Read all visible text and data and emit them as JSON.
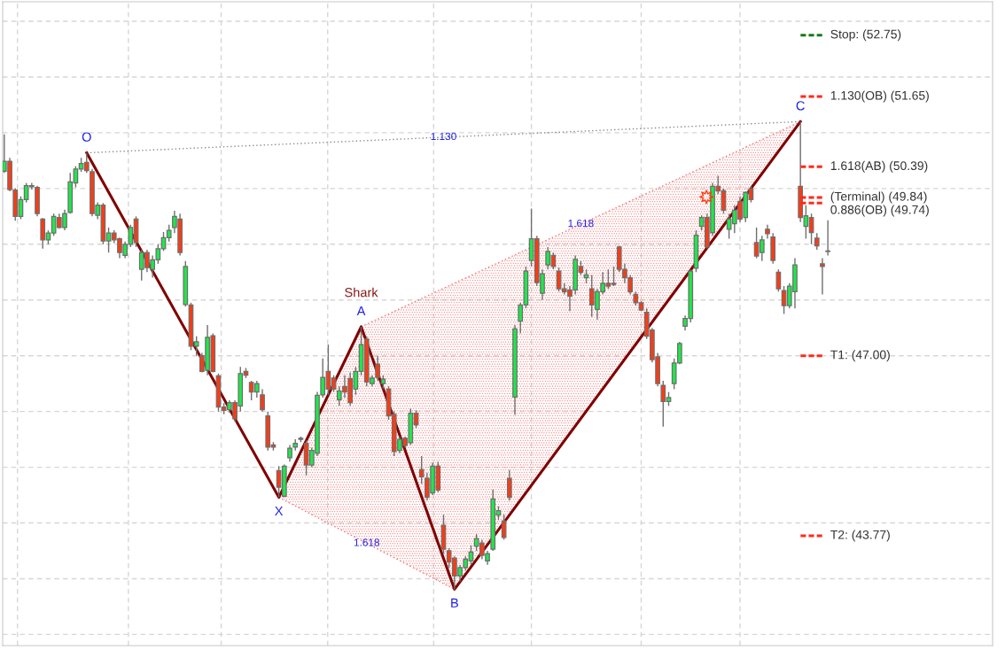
{
  "chart_data": {
    "type": "candlestick",
    "categories": [
      null,
      null,
      null,
      null,
      null,
      null,
      null,
      null,
      null,
      null,
      null,
      null,
      null,
      null,
      null,
      null,
      null,
      null,
      null,
      null,
      null,
      null,
      null,
      null,
      null,
      null,
      null,
      null,
      null,
      null,
      null,
      null,
      null,
      null,
      null,
      null,
      null,
      null,
      null,
      null,
      null,
      null,
      null,
      null,
      null,
      null,
      null,
      null,
      null,
      null,
      null,
      null,
      null,
      null,
      null,
      null,
      null,
      null,
      null,
      null,
      null,
      null,
      null,
      null,
      null,
      null,
      null,
      null,
      null,
      null,
      null,
      null,
      null,
      null,
      null,
      null,
      null,
      null,
      null,
      null,
      null,
      null,
      null,
      null,
      null,
      null,
      null,
      null,
      null,
      null,
      null,
      null,
      null,
      null,
      null,
      null,
      null,
      null,
      null,
      null,
      null,
      null,
      null,
      null,
      null,
      null,
      null,
      null,
      null,
      null,
      null,
      null,
      null,
      null,
      null,
      null,
      null,
      null,
      null,
      null,
      null,
      null,
      null,
      null,
      null,
      null,
      null,
      null,
      null,
      null,
      null,
      null,
      null,
      null,
      null,
      null,
      null,
      null,
      null,
      null,
      null,
      null,
      null,
      null,
      null,
      null,
      null,
      null,
      null,
      null,
      null
    ],
    "ohlc": [
      [
        50.31,
        50.97,
        50.28,
        50.49
      ],
      [
        50.49,
        50.55,
        49.95,
        49.98
      ],
      [
        49.97,
        50.0,
        49.42,
        49.5
      ],
      [
        49.5,
        49.86,
        49.45,
        49.8
      ],
      [
        49.8,
        50.1,
        49.75,
        50.05
      ],
      [
        50.05,
        50.1,
        49.98,
        50.03
      ],
      [
        50.02,
        50.05,
        49.5,
        49.55
      ],
      [
        49.45,
        49.47,
        48.92,
        49.08
      ],
      [
        49.08,
        49.25,
        49.0,
        49.2
      ],
      [
        49.2,
        49.55,
        49.15,
        49.5
      ],
      [
        49.48,
        49.55,
        49.28,
        49.3
      ],
      [
        49.3,
        49.62,
        49.25,
        49.55
      ],
      [
        49.57,
        50.28,
        49.55,
        50.12
      ],
      [
        50.1,
        50.4,
        50.02,
        50.35
      ],
      [
        50.35,
        50.55,
        50.3,
        50.45
      ],
      [
        50.47,
        50.64,
        50.28,
        50.32
      ],
      [
        50.3,
        50.35,
        49.5,
        49.55
      ],
      [
        49.52,
        49.75,
        49.45,
        49.7
      ],
      [
        49.7,
        49.74,
        49.0,
        49.06
      ],
      [
        49.06,
        49.3,
        48.85,
        49.2
      ],
      [
        49.2,
        49.25,
        49.02,
        49.08
      ],
      [
        49.1,
        49.12,
        48.75,
        48.85
      ],
      [
        48.8,
        49.05,
        48.75,
        49.0
      ],
      [
        49.0,
        49.35,
        48.95,
        49.3
      ],
      [
        49.45,
        49.5,
        48.95,
        49.03
      ],
      [
        48.55,
        48.9,
        48.35,
        48.85
      ],
      [
        48.85,
        48.9,
        48.5,
        48.58
      ],
      [
        48.55,
        48.8,
        48.4,
        48.72
      ],
      [
        48.72,
        49.0,
        48.65,
        48.92
      ],
      [
        48.92,
        49.22,
        48.88,
        49.12
      ],
      [
        49.12,
        49.35,
        49.05,
        49.25
      ],
      [
        49.3,
        49.6,
        49.2,
        49.5
      ],
      [
        49.45,
        49.55,
        48.8,
        48.85
      ],
      [
        47.92,
        48.7,
        47.88,
        48.6
      ],
      [
        47.91,
        47.95,
        47.1,
        47.17
      ],
      [
        47.17,
        47.35,
        47.0,
        47.25
      ],
      [
        47.0,
        47.05,
        46.7,
        46.72
      ],
      [
        46.74,
        47.55,
        46.65,
        47.33
      ],
      [
        47.36,
        47.4,
        46.7,
        46.72
      ],
      [
        46.64,
        46.68,
        46.0,
        46.08
      ],
      [
        46.08,
        46.15,
        45.95,
        46.02
      ],
      [
        46.03,
        46.2,
        45.98,
        46.16
      ],
      [
        46.16,
        46.2,
        45.82,
        45.87
      ],
      [
        46.1,
        46.8,
        46.0,
        46.68
      ],
      [
        46.72,
        46.78,
        46.6,
        46.65
      ],
      [
        46.52,
        46.55,
        46.2,
        46.35
      ],
      [
        46.35,
        46.55,
        46.25,
        46.5
      ],
      [
        46.3,
        46.4,
        46.0,
        46.03
      ],
      [
        45.92,
        46.0,
        45.3,
        45.36
      ],
      [
        45.4,
        45.45,
        45.3,
        45.36
      ],
      [
        44.94,
        45.02,
        44.46,
        44.64
      ],
      [
        44.48,
        45.05,
        44.46,
        45.02
      ],
      [
        45.17,
        45.4,
        45.1,
        45.34
      ],
      [
        45.36,
        45.5,
        45.3,
        45.43
      ],
      [
        45.52,
        45.55,
        45.45,
        45.5
      ],
      [
        45.43,
        45.48,
        44.85,
        45.04
      ],
      [
        45.04,
        45.35,
        45.0,
        45.3
      ],
      [
        45.25,
        46.35,
        45.2,
        46.29
      ],
      [
        46.3,
        46.95,
        46.25,
        46.61
      ],
      [
        46.72,
        47.2,
        46.3,
        46.4
      ],
      [
        46.6,
        46.65,
        46.35,
        46.4
      ],
      [
        46.21,
        46.45,
        46.1,
        46.37
      ],
      [
        46.45,
        46.65,
        46.25,
        46.35
      ],
      [
        46.59,
        46.7,
        46.1,
        46.16
      ],
      [
        46.4,
        46.8,
        46.3,
        46.72
      ],
      [
        46.72,
        47.52,
        46.65,
        47.2
      ],
      [
        47.3,
        47.35,
        46.45,
        46.53
      ],
      [
        46.5,
        46.65,
        46.45,
        46.6
      ],
      [
        46.85,
        47.0,
        46.55,
        46.61
      ],
      [
        46.5,
        46.65,
        46.4,
        46.58
      ],
      [
        46.4,
        46.45,
        45.85,
        45.92
      ],
      [
        45.95,
        46.0,
        45.2,
        45.28
      ],
      [
        45.3,
        45.55,
        45.25,
        45.5
      ],
      [
        45.52,
        45.55,
        45.35,
        45.39
      ],
      [
        45.44,
        46.05,
        45.4,
        45.97
      ],
      [
        45.97,
        46.02,
        45.7,
        45.76
      ],
      [
        44.96,
        45.2,
        44.7,
        44.83
      ],
      [
        44.8,
        44.9,
        44.4,
        44.46
      ],
      [
        44.54,
        45.08,
        44.5,
        45.02
      ],
      [
        45.02,
        45.1,
        44.55,
        44.59
      ],
      [
        43.96,
        44.15,
        43.45,
        43.53
      ],
      [
        43.5,
        43.55,
        43.2,
        43.3
      ],
      [
        43.37,
        43.4,
        42.81,
        43.05
      ],
      [
        43.05,
        43.25,
        42.95,
        43.2
      ],
      [
        43.2,
        43.4,
        43.15,
        43.35
      ],
      [
        43.32,
        43.6,
        43.25,
        43.48
      ],
      [
        43.58,
        43.8,
        43.5,
        43.72
      ],
      [
        43.64,
        43.7,
        43.35,
        43.42
      ],
      [
        43.32,
        43.5,
        43.25,
        43.45
      ],
      [
        43.53,
        44.6,
        43.5,
        44.43
      ],
      [
        44.14,
        44.3,
        44.05,
        44.22
      ],
      [
        44.04,
        44.15,
        43.7,
        43.74
      ],
      [
        44.8,
        44.95,
        44.4,
        44.46
      ],
      [
        46.26,
        47.55,
        45.94,
        47.48
      ],
      [
        47.62,
        47.95,
        47.4,
        47.91
      ],
      [
        47.91,
        48.6,
        47.85,
        48.52
      ],
      [
        48.71,
        49.64,
        48.6,
        49.1
      ],
      [
        49.1,
        49.15,
        48.25,
        48.31
      ],
      [
        48.12,
        48.55,
        48.0,
        48.47
      ],
      [
        48.63,
        48.95,
        48.55,
        48.87
      ],
      [
        48.8,
        48.85,
        48.55,
        48.6
      ],
      [
        48.52,
        48.58,
        48.15,
        48.2
      ],
      [
        48.2,
        48.3,
        48.1,
        48.15
      ],
      [
        48.18,
        48.25,
        47.8,
        48.07
      ],
      [
        48.18,
        48.8,
        48.1,
        48.73
      ],
      [
        48.6,
        48.7,
        48.45,
        48.5
      ],
      [
        48.4,
        48.55,
        48.3,
        48.45
      ],
      [
        48.2,
        48.45,
        47.7,
        47.91
      ],
      [
        47.83,
        48.2,
        47.65,
        48.15
      ],
      [
        48.15,
        48.5,
        48.1,
        48.3
      ],
      [
        48.3,
        48.55,
        48.2,
        48.25
      ],
      [
        48.3,
        48.6,
        48.25,
        48.28
      ],
      [
        48.95,
        48.97,
        48.5,
        48.55
      ],
      [
        48.55,
        48.65,
        48.3,
        48.4
      ],
      [
        48.4,
        48.45,
        48.1,
        48.15
      ],
      [
        48.1,
        48.15,
        47.9,
        47.95
      ],
      [
        47.95,
        47.98,
        47.8,
        47.82
      ],
      [
        47.78,
        47.85,
        47.3,
        47.35
      ],
      [
        47.46,
        47.5,
        46.88,
        46.93
      ],
      [
        46.98,
        47.05,
        46.45,
        46.5
      ],
      [
        46.47,
        46.55,
        45.73,
        46.18
      ],
      [
        46.18,
        46.35,
        46.1,
        46.25
      ],
      [
        46.5,
        46.95,
        46.4,
        46.87
      ],
      [
        46.87,
        47.25,
        46.85,
        47.22
      ],
      [
        47.53,
        47.72,
        47.45,
        47.67
      ],
      [
        47.67,
        48.55,
        47.6,
        48.52
      ],
      [
        48.57,
        49.25,
        48.5,
        49.16
      ],
      [
        49.32,
        49.52,
        49.25,
        49.48
      ],
      [
        49.48,
        49.55,
        48.92,
        48.95
      ],
      [
        49.21,
        50.1,
        49.15,
        50.04
      ],
      [
        50.04,
        50.23,
        49.9,
        49.96
      ],
      [
        49.96,
        50.0,
        49.55,
        49.61
      ],
      [
        49.27,
        49.55,
        49.1,
        49.45
      ],
      [
        49.37,
        49.7,
        49.2,
        49.61
      ],
      [
        49.77,
        49.85,
        49.4,
        49.45
      ],
      [
        49.48,
        49.95,
        49.4,
        49.93
      ],
      [
        49.99,
        50.05,
        49.75,
        49.8
      ],
      [
        49.03,
        49.3,
        48.75,
        48.79
      ],
      [
        48.85,
        49.15,
        48.7,
        49.08
      ],
      [
        49.27,
        49.35,
        49.1,
        49.19
      ],
      [
        49.13,
        49.2,
        48.65,
        48.71
      ],
      [
        48.5,
        48.55,
        48.15,
        48.2
      ],
      [
        48.17,
        48.25,
        47.75,
        47.9
      ],
      [
        47.9,
        48.3,
        47.85,
        48.25
      ],
      [
        48.15,
        48.75,
        47.85,
        48.63
      ],
      [
        50.04,
        51.2,
        49.4,
        49.48
      ],
      [
        49.32,
        49.7,
        49.1,
        49.51
      ],
      [
        49.48,
        49.55,
        49.0,
        49.21
      ],
      [
        49.11,
        49.2,
        48.9,
        48.97
      ],
      [
        48.65,
        48.75,
        48.1,
        48.6
      ],
      [
        48.87,
        49.43,
        48.8,
        48.88
      ]
    ],
    "series": [
      {
        "type": "line",
        "color": "#800000",
        "line_style": "solid",
        "values": [
          null,
          null,
          null,
          null,
          null,
          null,
          null,
          null,
          null,
          null,
          null,
          null,
          null,
          null,
          null,
          50.64,
          null,
          null,
          null,
          null,
          null,
          null,
          null,
          null,
          null,
          null,
          null,
          null,
          null,
          null,
          null,
          null,
          null,
          null,
          null,
          null,
          null,
          null,
          null,
          null,
          null,
          null,
          null,
          null,
          null,
          null,
          null,
          null,
          null,
          null,
          44.46,
          null,
          null,
          null,
          null,
          null,
          null,
          null,
          null,
          null,
          null,
          null,
          null,
          null,
          null,
          47.52,
          null,
          null,
          null,
          null,
          null,
          null,
          null,
          null,
          null,
          null,
          null,
          null,
          null,
          null,
          null,
          null,
          42.81,
          null,
          null,
          null,
          null,
          null,
          null,
          null,
          null,
          null,
          null,
          null,
          null,
          null,
          null,
          null,
          null,
          null,
          null,
          null,
          null,
          null,
          null,
          null,
          null,
          null,
          null,
          null,
          null,
          null,
          null,
          null,
          null,
          null,
          null,
          null,
          null,
          null,
          null,
          null,
          null,
          null,
          null,
          null,
          null,
          null,
          null,
          null,
          null,
          null,
          null,
          null,
          null,
          null,
          null,
          null,
          null,
          null,
          null,
          null,
          null,
          null,
          null,
          51.2,
          null,
          null,
          null,
          null,
          null
        ],
        "value_labels": [
          null,
          null,
          null,
          null,
          null,
          null,
          null,
          null,
          null,
          null,
          null,
          null,
          null,
          null,
          null,
          "O",
          null,
          null,
          null,
          null,
          null,
          null,
          null,
          null,
          null,
          null,
          null,
          null,
          null,
          null,
          null,
          null,
          null,
          null,
          null,
          null,
          null,
          null,
          null,
          null,
          null,
          null,
          null,
          null,
          null,
          null,
          null,
          null,
          null,
          null,
          "X",
          null,
          null,
          null,
          null,
          null,
          null,
          null,
          null,
          null,
          null,
          null,
          null,
          null,
          null,
          "A",
          null,
          null,
          null,
          null,
          null,
          null,
          null,
          null,
          null,
          null,
          null,
          null,
          null,
          null,
          null,
          null,
          "B",
          null,
          null,
          null,
          null,
          null,
          null,
          null,
          null,
          null,
          null,
          null,
          null,
          null,
          null,
          null,
          null,
          null,
          null,
          null,
          null,
          null,
          null,
          null,
          null,
          null,
          null,
          null,
          null,
          null,
          null,
          null,
          null,
          null,
          null,
          null,
          null,
          null,
          null,
          null,
          null,
          null,
          null,
          null,
          null,
          null,
          null,
          null,
          null,
          null,
          null,
          null,
          null,
          null,
          null,
          null,
          null,
          null,
          null,
          null,
          null,
          null,
          null,
          "C",
          null,
          null,
          null,
          null,
          null
        ]
      },
      {
        "type": "line",
        "name": "1.130",
        "color": "#8c8c8c",
        "line_style": "dotted",
        "values": [
          null,
          null,
          null,
          null,
          null,
          null,
          null,
          null,
          null,
          null,
          null,
          null,
          null,
          null,
          null,
          50.64,
          null,
          null,
          null,
          null,
          null,
          null,
          null,
          null,
          null,
          null,
          null,
          null,
          null,
          null,
          null,
          null,
          null,
          null,
          null,
          null,
          null,
          null,
          null,
          null,
          null,
          null,
          null,
          null,
          null,
          null,
          null,
          null,
          null,
          null,
          null,
          null,
          null,
          null,
          null,
          null,
          null,
          null,
          null,
          null,
          null,
          null,
          null,
          null,
          null,
          null,
          null,
          null,
          null,
          null,
          null,
          null,
          null,
          null,
          null,
          null,
          null,
          null,
          null,
          null,
          null,
          null,
          null,
          null,
          null,
          null,
          null,
          null,
          null,
          null,
          null,
          null,
          null,
          null,
          null,
          null,
          null,
          null,
          null,
          null,
          null,
          null,
          null,
          null,
          null,
          null,
          null,
          null,
          null,
          null,
          null,
          null,
          null,
          null,
          null,
          null,
          null,
          null,
          null,
          null,
          null,
          null,
          null,
          null,
          null,
          null,
          null,
          null,
          null,
          null,
          null,
          null,
          null,
          null,
          null,
          null,
          null,
          null,
          null,
          null,
          null,
          null,
          null,
          null,
          null,
          51.2,
          null,
          null,
          null,
          null,
          null
        ]
      },
      {
        "type": "line",
        "name": "1.618",
        "color": "#f07070",
        "line_style": "dotted",
        "values": [
          null,
          null,
          null,
          null,
          null,
          null,
          null,
          null,
          null,
          null,
          null,
          null,
          null,
          null,
          null,
          null,
          null,
          null,
          null,
          null,
          null,
          null,
          null,
          null,
          null,
          null,
          null,
          null,
          null,
          null,
          null,
          null,
          null,
          null,
          null,
          null,
          null,
          null,
          null,
          null,
          null,
          null,
          null,
          null,
          null,
          null,
          null,
          null,
          null,
          null,
          44.46,
          null,
          null,
          null,
          null,
          null,
          null,
          null,
          null,
          null,
          null,
          null,
          null,
          null,
          null,
          null,
          null,
          null,
          null,
          null,
          null,
          null,
          null,
          null,
          null,
          null,
          null,
          null,
          null,
          null,
          null,
          null,
          42.81,
          null,
          null,
          null,
          null,
          null,
          null,
          null,
          null,
          null,
          null,
          null,
          null,
          null,
          null,
          null,
          null,
          null,
          null,
          null,
          null,
          null,
          null,
          null,
          null,
          null,
          null,
          null,
          null,
          null,
          null,
          null,
          null,
          null,
          null,
          null,
          null,
          null,
          null,
          null,
          null,
          null,
          null,
          null,
          null,
          null,
          null,
          null,
          null,
          null,
          null,
          null,
          null,
          null,
          null,
          null,
          null,
          null,
          null,
          null,
          null,
          null,
          null,
          null,
          null,
          null,
          null,
          null,
          null
        ]
      },
      {
        "type": "line",
        "name": "1.618",
        "color": "#f07070",
        "line_style": "dotted",
        "values": [
          null,
          null,
          null,
          null,
          null,
          null,
          null,
          null,
          null,
          null,
          null,
          null,
          null,
          null,
          null,
          null,
          null,
          null,
          null,
          null,
          null,
          null,
          null,
          null,
          null,
          null,
          null,
          null,
          null,
          null,
          null,
          null,
          null,
          null,
          null,
          null,
          null,
          null,
          null,
          null,
          null,
          null,
          null,
          null,
          null,
          null,
          null,
          null,
          null,
          null,
          null,
          null,
          null,
          null,
          null,
          null,
          null,
          null,
          null,
          null,
          null,
          null,
          null,
          null,
          null,
          47.52,
          null,
          null,
          null,
          null,
          null,
          null,
          null,
          null,
          null,
          null,
          null,
          null,
          null,
          null,
          null,
          null,
          null,
          null,
          null,
          null,
          null,
          null,
          null,
          null,
          null,
          null,
          null,
          null,
          null,
          null,
          null,
          null,
          null,
          null,
          null,
          null,
          null,
          null,
          null,
          null,
          null,
          null,
          null,
          null,
          null,
          null,
          null,
          null,
          null,
          null,
          null,
          null,
          null,
          null,
          null,
          null,
          null,
          null,
          null,
          null,
          null,
          null,
          null,
          null,
          null,
          null,
          null,
          null,
          null,
          null,
          null,
          null,
          null,
          null,
          null,
          null,
          null,
          null,
          null,
          51.2,
          null,
          null,
          null,
          null,
          null
        ]
      }
    ],
    "annotations": [
      "Shark"
    ],
    "ref_lines": [
      {
        "axis": "y",
        "value": 52.75,
        "label": "Stop: (52.75)",
        "color": "#1a7a1a",
        "line_style": "dashed"
      },
      {
        "axis": "y",
        "value": 51.65,
        "label": "1.130(OB) (51.65)",
        "color": "#ff2a1a",
        "line_style": "dashed"
      },
      {
        "axis": "y",
        "value": 50.39,
        "label": "1.618(AB) (50.39)",
        "color": "#ff2a1a",
        "line_style": "dashed"
      },
      {
        "axis": "y",
        "value": 49.84,
        "label": "(Terminal) (49.84)",
        "color": "#ff2a1a",
        "line_style": "dashed"
      },
      {
        "axis": "y",
        "value": 49.74,
        "label": "0.886(OB) (49.74)",
        "color": "#ff2a1a",
        "line_style": "dashed"
      },
      {
        "axis": "y",
        "value": 47.0,
        "label": "T1: (47.00)",
        "color": "#ff2a1a",
        "line_style": "dashed"
      },
      {
        "axis": "y",
        "value": 43.77,
        "label": "T2: (43.77)",
        "color": "#ff2a1a",
        "line_style": "dashed"
      }
    ],
    "ylim": [
      41.8,
      53.35
    ],
    "yticks": [
      {
        "value": 42,
        "label": null
      },
      {
        "value": 43,
        "label": null
      },
      {
        "value": 44,
        "label": null
      },
      {
        "value": 45,
        "label": null
      },
      {
        "value": 46,
        "label": null
      },
      {
        "value": 47,
        "label": null
      },
      {
        "value": 48,
        "label": null
      },
      {
        "value": 49,
        "label": null
      },
      {
        "value": 50,
        "label": null
      },
      {
        "value": 51,
        "label": null
      },
      {
        "value": 52,
        "label": null
      },
      {
        "value": 53,
        "label": null
      }
    ],
    "grid": true,
    "legend": false
  }
}
